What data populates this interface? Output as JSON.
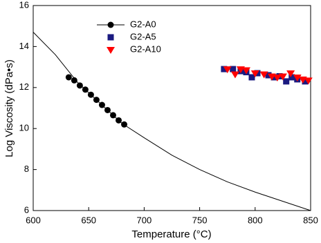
{
  "chart_data": {
    "type": "scatter",
    "xlabel": "Temperature (°C)",
    "ylabel": "Log Viscosity (dPa•s)",
    "xlim": [
      600,
      850
    ],
    "ylim": [
      6,
      16
    ],
    "xticks": [
      600,
      650,
      700,
      750,
      800,
      850
    ],
    "yticks": [
      6,
      8,
      10,
      12,
      14,
      16
    ],
    "curve": {
      "color": "#000000",
      "x": [
        600,
        620,
        640,
        660,
        680,
        700,
        725,
        750,
        775,
        800,
        825,
        850
      ],
      "values": [
        14.7,
        13.6,
        12.25,
        11.25,
        10.25,
        9.55,
        8.7,
        8.0,
        7.4,
        6.9,
        6.45,
        6.0
      ]
    },
    "series": [
      {
        "name": "G2-A0",
        "color": "#000000",
        "marker": "circle",
        "line": true,
        "x": [
          632,
          637,
          642,
          647,
          652,
          657,
          662,
          667,
          672,
          677,
          682
        ],
        "values": [
          12.5,
          12.35,
          12.1,
          11.9,
          11.65,
          11.4,
          11.15,
          10.9,
          10.65,
          10.4,
          10.2
        ]
      },
      {
        "name": "G2-A5",
        "color": "#1a1a80",
        "marker": "square",
        "x": [
          772,
          780,
          787,
          792,
          797,
          802,
          812,
          817,
          822,
          828,
          833,
          838,
          845
        ],
        "values": [
          12.9,
          12.9,
          12.8,
          12.75,
          12.5,
          12.7,
          12.6,
          12.5,
          12.55,
          12.3,
          12.5,
          12.4,
          12.3
        ]
      },
      {
        "name": "G2-A10",
        "color": "#ff0000",
        "marker": "triangle",
        "x": [
          775,
          782,
          787,
          792,
          800,
          808,
          815,
          820,
          825,
          832,
          838,
          843,
          848
        ],
        "values": [
          12.9,
          12.65,
          12.9,
          12.85,
          12.7,
          12.65,
          12.55,
          12.5,
          12.55,
          12.7,
          12.5,
          12.4,
          12.35
        ]
      }
    ]
  }
}
